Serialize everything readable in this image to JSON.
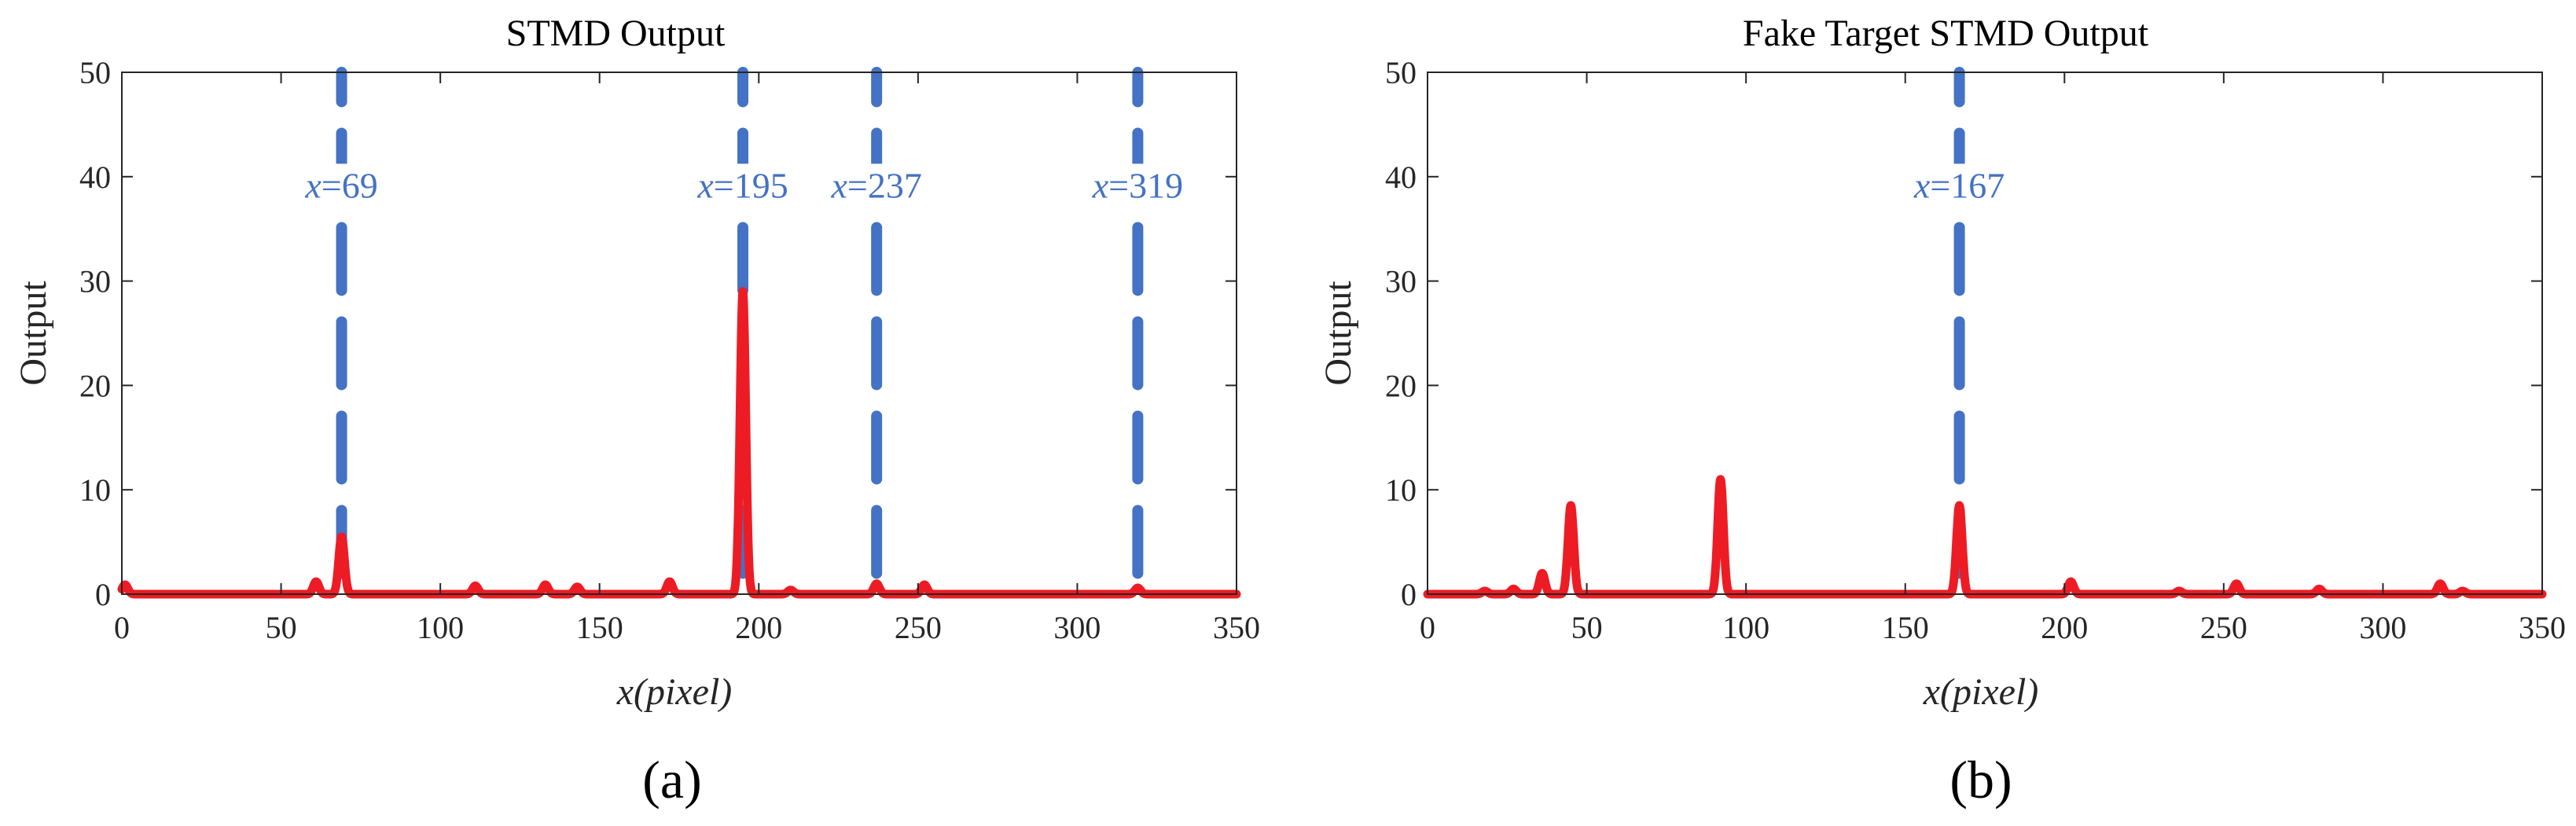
{
  "figure": {
    "captions": [
      "(a)",
      "(b)"
    ],
    "colors": {
      "marker": "#4472C4",
      "response": "#ED1C24",
      "axis": "#262626"
    }
  },
  "chart_data": [
    {
      "type": "line",
      "title": "STMD Output",
      "xlabel": "x(pixel)",
      "ylabel": "Output",
      "xlim": [
        0,
        350
      ],
      "ylim": [
        0,
        50
      ],
      "xticks": [
        "0",
        "50",
        "100",
        "150",
        "200",
        "250",
        "300",
        "350"
      ],
      "yticks": [
        "0",
        "10",
        "20",
        "30",
        "40",
        "50"
      ],
      "grid": false,
      "markers": [
        {
          "x": 69,
          "label_var": "x",
          "label_val": "=69"
        },
        {
          "x": 195,
          "label_var": "x",
          "label_val": "=195"
        },
        {
          "x": 237,
          "label_var": "x",
          "label_val": "=237"
        },
        {
          "x": 319,
          "label_var": "x",
          "label_val": "=319"
        }
      ],
      "peaks": [
        {
          "x": 1,
          "y": 0.9
        },
        {
          "x": 61,
          "y": 1.2
        },
        {
          "x": 69,
          "y": 5.5
        },
        {
          "x": 111,
          "y": 0.8
        },
        {
          "x": 133,
          "y": 0.9
        },
        {
          "x": 143,
          "y": 0.7
        },
        {
          "x": 172,
          "y": 1.2
        },
        {
          "x": 195,
          "y": 29
        },
        {
          "x": 210,
          "y": 0.4
        },
        {
          "x": 237,
          "y": 1.0
        },
        {
          "x": 252,
          "y": 0.9
        },
        {
          "x": 319,
          "y": 0.6
        }
      ]
    },
    {
      "type": "line",
      "title": "Fake Target STMD Output",
      "xlabel": "x(pixel)",
      "ylabel": "Output",
      "xlim": [
        0,
        350
      ],
      "ylim": [
        0,
        50
      ],
      "xticks": [
        "0",
        "50",
        "100",
        "150",
        "200",
        "250",
        "300",
        "350"
      ],
      "yticks": [
        "0",
        "10",
        "20",
        "30",
        "40",
        "50"
      ],
      "grid": false,
      "markers": [
        {
          "x": 167,
          "label_var": "x",
          "label_val": "=167"
        }
      ],
      "peaks": [
        {
          "x": 18,
          "y": 0.3
        },
        {
          "x": 27,
          "y": 0.5
        },
        {
          "x": 36,
          "y": 2.0
        },
        {
          "x": 45,
          "y": 8.5
        },
        {
          "x": 92,
          "y": 11
        },
        {
          "x": 167,
          "y": 8.5
        },
        {
          "x": 202,
          "y": 1.2
        },
        {
          "x": 236,
          "y": 0.3
        },
        {
          "x": 254,
          "y": 1.0
        },
        {
          "x": 280,
          "y": 0.5
        },
        {
          "x": 318,
          "y": 1.0
        },
        {
          "x": 325,
          "y": 0.3
        }
      ]
    }
  ]
}
